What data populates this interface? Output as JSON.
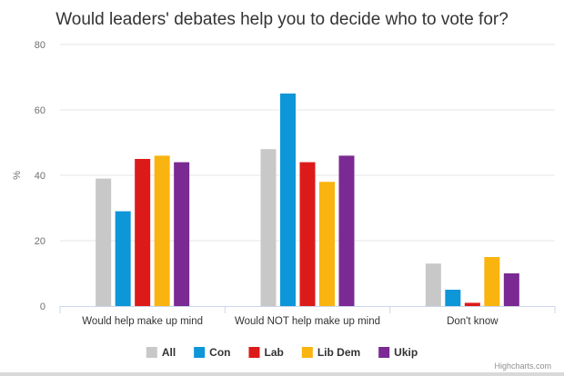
{
  "chart_data": {
    "type": "bar",
    "title": "Would leaders' debates help you to decide who to vote for?",
    "ylabel": "%",
    "xlabel": "",
    "ylim": [
      0,
      80
    ],
    "yticks": [
      0,
      20,
      40,
      60,
      80
    ],
    "grid": true,
    "legend_position": "bottom",
    "categories": [
      "Would help make up mind",
      "Would NOT help make up mind",
      "Don't know"
    ],
    "series": [
      {
        "name": "All",
        "color": "#c8c8c8",
        "values": [
          39,
          48,
          13
        ]
      },
      {
        "name": "Con",
        "color": "#0d96d8",
        "values": [
          29,
          65,
          5
        ]
      },
      {
        "name": "Lab",
        "color": "#dd1a1a",
        "values": [
          45,
          44,
          1
        ]
      },
      {
        "name": "Lib Dem",
        "color": "#fab40f",
        "values": [
          46,
          38,
          15
        ]
      },
      {
        "name": "Ukip",
        "color": "#7a2a92",
        "values": [
          44,
          46,
          10
        ]
      }
    ],
    "credit": "Highcharts.com"
  }
}
